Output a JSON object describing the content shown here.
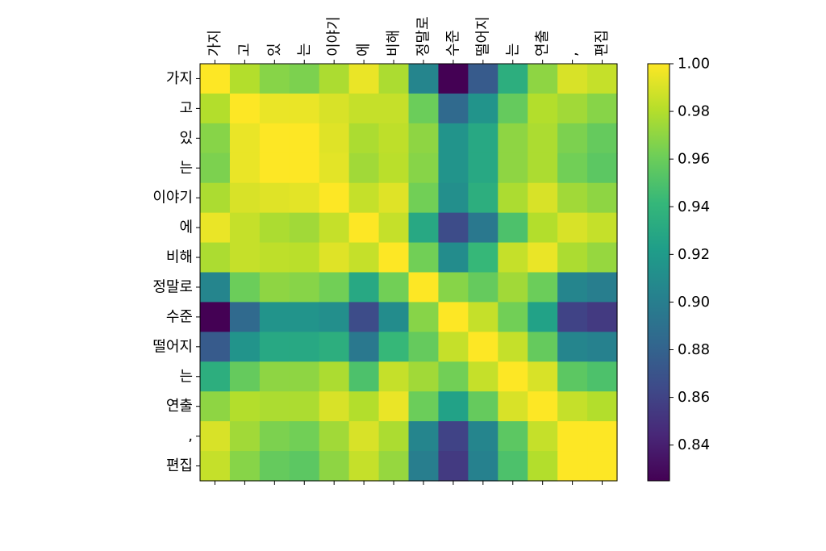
{
  "chart_data": {
    "type": "heatmap",
    "labels": [
      "가지",
      "고",
      "있",
      "는",
      "이야기",
      "에",
      "비해",
      "정말로",
      "수준",
      "떨어지",
      "는",
      "연출",
      ",",
      "편집"
    ],
    "colorbar": {
      "min": 0.825,
      "max": 1.0,
      "ticks": [
        "0.84",
        "0.86",
        "0.88",
        "0.90",
        "0.92",
        "0.94",
        "0.96",
        "0.98",
        "1.00"
      ],
      "tick_values": [
        0.84,
        0.86,
        0.88,
        0.9,
        0.92,
        0.94,
        0.96,
        0.98,
        1.0
      ]
    },
    "colormap": [
      "#440154",
      "#482878",
      "#3e4a89",
      "#31688e",
      "#26828e",
      "#1f9e89",
      "#35b779",
      "#6ece58",
      "#b5de2b",
      "#fde725"
    ],
    "matrix": [
      [
        1.0,
        0.98,
        0.968,
        0.965,
        0.978,
        0.995,
        0.978,
        0.905,
        0.825,
        0.875,
        0.935,
        0.97,
        0.99,
        0.985
      ],
      [
        0.98,
        1.0,
        0.995,
        0.995,
        0.99,
        0.985,
        0.985,
        0.96,
        0.885,
        0.915,
        0.958,
        0.98,
        0.975,
        0.968
      ],
      [
        0.968,
        0.995,
        1.0,
        1.0,
        0.992,
        0.978,
        0.983,
        0.97,
        0.915,
        0.93,
        0.97,
        0.978,
        0.965,
        0.958
      ],
      [
        0.965,
        0.995,
        1.0,
        1.0,
        0.993,
        0.975,
        0.982,
        0.968,
        0.915,
        0.93,
        0.97,
        0.978,
        0.962,
        0.955
      ],
      [
        0.978,
        0.99,
        0.992,
        0.993,
        1.0,
        0.985,
        0.992,
        0.962,
        0.912,
        0.935,
        0.978,
        0.99,
        0.975,
        0.97
      ],
      [
        0.995,
        0.985,
        0.978,
        0.975,
        0.985,
        1.0,
        0.985,
        0.93,
        0.865,
        0.895,
        0.95,
        0.98,
        0.99,
        0.985
      ],
      [
        0.978,
        0.985,
        0.983,
        0.982,
        0.992,
        0.985,
        1.0,
        0.962,
        0.91,
        0.942,
        0.985,
        0.995,
        0.978,
        0.972
      ],
      [
        0.905,
        0.96,
        0.97,
        0.968,
        0.962,
        0.93,
        0.962,
        1.0,
        0.968,
        0.958,
        0.975,
        0.96,
        0.905,
        0.9
      ],
      [
        0.825,
        0.885,
        0.915,
        0.915,
        0.912,
        0.865,
        0.91,
        0.968,
        1.0,
        0.985,
        0.962,
        0.925,
        0.86,
        0.855
      ],
      [
        0.875,
        0.915,
        0.93,
        0.93,
        0.935,
        0.895,
        0.942,
        0.958,
        0.985,
        1.0,
        0.985,
        0.958,
        0.905,
        0.902
      ],
      [
        0.935,
        0.958,
        0.97,
        0.97,
        0.978,
        0.95,
        0.985,
        0.975,
        0.962,
        0.985,
        1.0,
        0.99,
        0.955,
        0.95
      ],
      [
        0.97,
        0.98,
        0.978,
        0.978,
        0.99,
        0.98,
        0.995,
        0.96,
        0.925,
        0.958,
        0.99,
        1.0,
        0.985,
        0.98
      ],
      [
        0.99,
        0.975,
        0.965,
        0.962,
        0.975,
        0.99,
        0.978,
        0.905,
        0.86,
        0.905,
        0.955,
        0.985,
        1.0,
        1.0
      ],
      [
        0.985,
        0.968,
        0.958,
        0.955,
        0.97,
        0.985,
        0.972,
        0.9,
        0.855,
        0.902,
        0.95,
        0.98,
        1.0,
        1.0
      ]
    ]
  }
}
